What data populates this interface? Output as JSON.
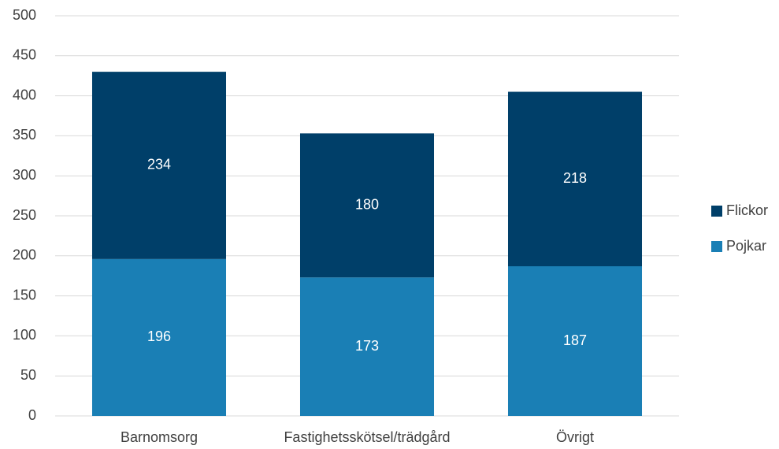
{
  "chart_data": {
    "type": "stacked_bar",
    "categories": [
      "Barnomsorg",
      "Fastighetsskötsel/trädgård",
      "Övrigt"
    ],
    "series": [
      {
        "name": "Pojkar",
        "color": "#1a7fb5",
        "values": [
          196,
          173,
          187
        ]
      },
      {
        "name": "Flickor",
        "color": "#003f69",
        "values": [
          234,
          180,
          218
        ]
      }
    ],
    "ylim": [
      0,
      500
    ],
    "yticks": [
      0,
      50,
      100,
      150,
      200,
      250,
      300,
      350,
      400,
      450,
      500
    ],
    "grid": true,
    "legend": "right"
  }
}
